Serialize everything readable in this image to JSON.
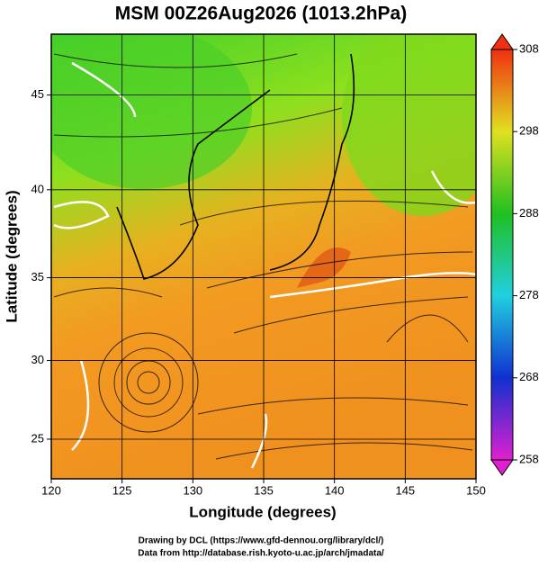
{
  "title": "MSM 00Z26Aug2026 (1013.2hPa)",
  "map": {
    "projection": "mercator",
    "xlabel": "Longitude (degrees)",
    "ylabel": "Latitude  (degrees)",
    "xlim": [
      120,
      150
    ],
    "ylim": [
      22.4,
      48
    ],
    "xticks": [
      120,
      125,
      130,
      135,
      140,
      145,
      150
    ],
    "yticks": [
      25,
      30,
      35,
      40,
      45
    ],
    "grid": true
  },
  "colorbar": {
    "lim": [
      258,
      308
    ],
    "ticks": [
      258,
      268,
      278,
      288,
      298,
      308
    ]
  },
  "credits": [
    "Drawing by DCL (https://www.gfd-dennou.org/library/dcl/)",
    "Data from http://database.rish.kyoto-u.ac.jp/arch/jmadata/"
  ]
}
